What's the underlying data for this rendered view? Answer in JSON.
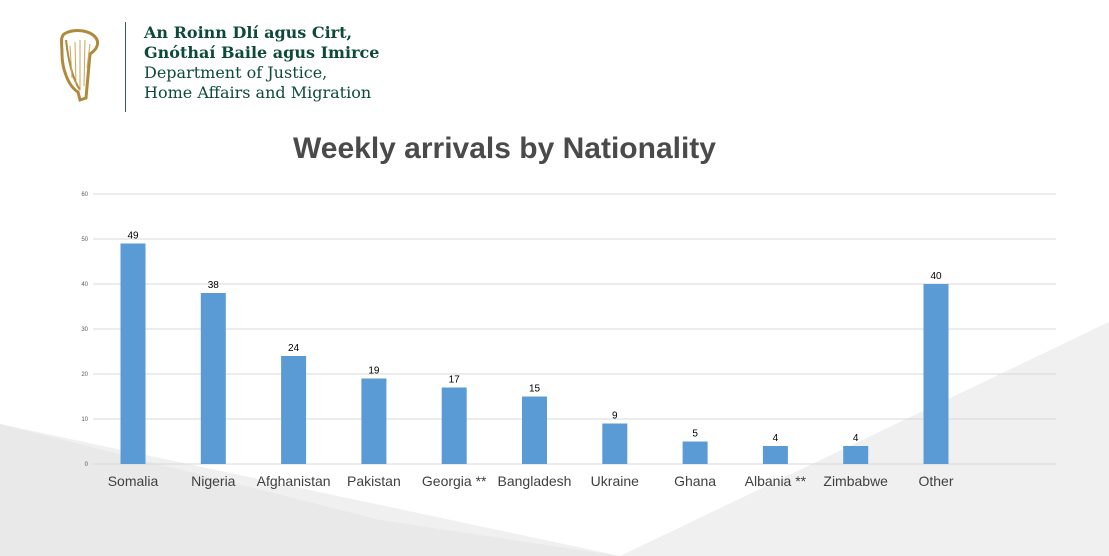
{
  "logo": {
    "irish_line1": "An Roinn Dlí agus Cirt,",
    "irish_line2": "Gnóthaí Baile agus Imirce",
    "english_line1": "Department of Justice,",
    "english_line2": "Home Affairs and Migration",
    "icon": "harp-emblem-icon"
  },
  "colors": {
    "bar": "#5b9bd5",
    "title": "#4a4a4a",
    "gridline": "#d9d9d9",
    "brand": "#0e4a3a"
  },
  "chart_data": {
    "type": "bar",
    "title": "Weekly arrivals by Nationality",
    "xlabel": "",
    "ylabel": "",
    "categories": [
      "Somalia",
      "Nigeria",
      "Afghanistan",
      "Pakistan",
      "Georgia **",
      "Bangladesh",
      "Ukraine",
      "Ghana",
      "Albania **",
      "Zimbabwe",
      "Other"
    ],
    "values": [
      49,
      38,
      24,
      19,
      17,
      15,
      9,
      5,
      4,
      4,
      40
    ],
    "ylim": [
      0,
      60
    ],
    "yticks": [
      0,
      10,
      20,
      30,
      40,
      50,
      60
    ],
    "grid": true,
    "legend": "none",
    "data_labels": true
  }
}
